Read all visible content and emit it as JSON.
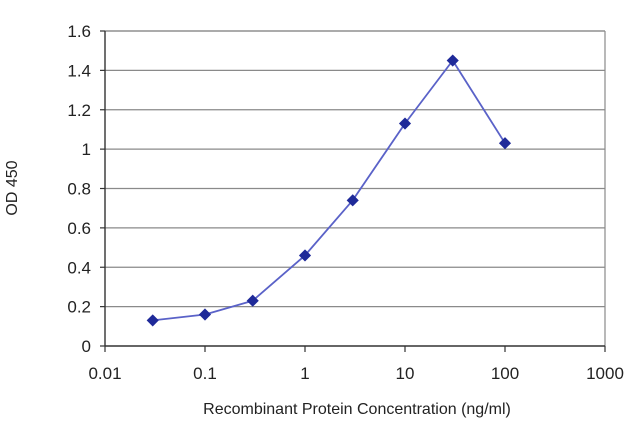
{
  "chart_data": {
    "type": "line",
    "title": "",
    "xlabel": "Recombinant Protein Concentration (ng/ml)",
    "ylabel": "OD 450",
    "x_scale": "log",
    "xlim": [
      0.01,
      1000
    ],
    "ylim": [
      0,
      1.6
    ],
    "x_ticks": [
      "0.01",
      "0.1",
      "1",
      "10",
      "100",
      "1000"
    ],
    "y_ticks": [
      "0",
      "0.2",
      "0.4",
      "0.6",
      "0.8",
      "1",
      "1.2",
      "1.4",
      "1.6"
    ],
    "grid": "horizontal",
    "legend": "none",
    "series": [
      {
        "color": "#1f2a99",
        "marker": "diamond",
        "points": [
          {
            "x": 0.03,
            "y": 0.13
          },
          {
            "x": 0.1,
            "y": 0.16
          },
          {
            "x": 0.3,
            "y": 0.23
          },
          {
            "x": 1,
            "y": 0.46
          },
          {
            "x": 3,
            "y": 0.74
          },
          {
            "x": 10,
            "y": 1.13
          },
          {
            "x": 30,
            "y": 1.45
          },
          {
            "x": 100,
            "y": 1.03
          }
        ]
      }
    ]
  }
}
